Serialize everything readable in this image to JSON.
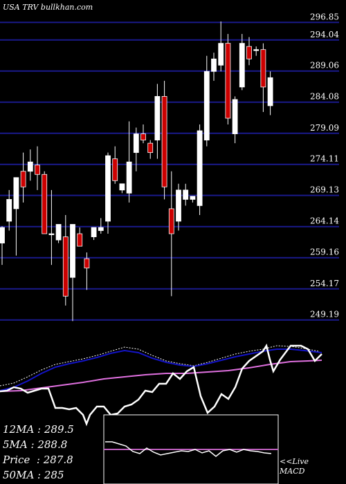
{
  "header": {
    "site": "USA TRV bullkhan.com"
  },
  "indicators": {
    "ma12": "12MA : 289.5",
    "ma5": "5MA : 288.8",
    "price": "Price  : 287.8",
    "ma50": "50MA : 285"
  },
  "macd": {
    "live": "<<Live",
    "label": "MACD"
  },
  "colors": {
    "background": "#000000",
    "gridline": "#1a1a8c",
    "candle_up": "#ffffff",
    "candle_down": "#cc0000",
    "ma_blue": "#1414c8",
    "ma_pink": "#e070e0",
    "oscillator": "#ffffff",
    "macd_signal": "#c060c0"
  },
  "chart_data": {
    "type": "candlestick",
    "ylim": [
      246.5,
      299.0
    ],
    "y_ticks": [
      "296.85",
      "294.04",
      "289.06",
      "284.08",
      "279.09",
      "274.11",
      "269.13",
      "264.14",
      "259.16",
      "254.17",
      "249.19"
    ],
    "candles": [
      {
        "o": 261.5,
        "h": 264.2,
        "l": 258.0,
        "c": 264.0
      },
      {
        "o": 265.0,
        "h": 270.0,
        "l": 263.5,
        "c": 268.5
      },
      {
        "o": 267.0,
        "h": 272.0,
        "l": 259.5,
        "c": 272.0
      },
      {
        "o": 273.0,
        "h": 276.0,
        "l": 268.0,
        "c": 270.5
      },
      {
        "o": 273.0,
        "h": 276.5,
        "l": 271.5,
        "c": 274.5
      },
      {
        "o": 274.0,
        "h": 277.0,
        "l": 270.0,
        "c": 272.5
      },
      {
        "o": 272.5,
        "h": 273.0,
        "l": 263.0,
        "c": 263.0
      },
      {
        "o": 263.0,
        "h": 270.0,
        "l": 258.0,
        "c": 263.0
      },
      {
        "o": 262.0,
        "h": 264.5,
        "l": 261.5,
        "c": 264.5
      },
      {
        "o": 262.5,
        "h": 266.0,
        "l": 251.5,
        "c": 253.0
      },
      {
        "o": 256.0,
        "h": 264.5,
        "l": 249.0,
        "c": 264.5
      },
      {
        "o": 263.0,
        "h": 264.0,
        "l": 261.0,
        "c": 261.0
      },
      {
        "o": 259.0,
        "h": 260.0,
        "l": 254.0,
        "c": 257.5
      },
      {
        "o": 262.5,
        "h": 264.0,
        "l": 262.0,
        "c": 264.0
      },
      {
        "o": 263.5,
        "h": 265.5,
        "l": 263.0,
        "c": 264.0
      },
      {
        "o": 265.0,
        "h": 276.0,
        "l": 263.0,
        "c": 275.5
      },
      {
        "o": 275.0,
        "h": 277.0,
        "l": 271.0,
        "c": 271.5
      },
      {
        "o": 270.0,
        "h": 271.0,
        "l": 269.5,
        "c": 271.0
      },
      {
        "o": 269.5,
        "h": 281.0,
        "l": 268.0,
        "c": 274.5
      },
      {
        "o": 276.0,
        "h": 280.0,
        "l": 273.0,
        "c": 279.0
      },
      {
        "o": 279.0,
        "h": 280.5,
        "l": 277.5,
        "c": 278.0
      },
      {
        "o": 277.5,
        "h": 278.0,
        "l": 275.0,
        "c": 276.0
      },
      {
        "o": 278.0,
        "h": 287.0,
        "l": 275.0,
        "c": 285.0
      },
      {
        "o": 285.0,
        "h": 287.5,
        "l": 268.5,
        "c": 270.5
      },
      {
        "o": 267.0,
        "h": 273.0,
        "l": 253.0,
        "c": 263.0
      },
      {
        "o": 265.0,
        "h": 271.0,
        "l": 263.5,
        "c": 270.0
      },
      {
        "o": 268.5,
        "h": 271.0,
        "l": 267.5,
        "c": 270.0
      },
      {
        "o": 268.5,
        "h": 269.0,
        "l": 268.0,
        "c": 269.0
      },
      {
        "o": 267.5,
        "h": 280.5,
        "l": 266.0,
        "c": 279.5
      },
      {
        "o": 278.0,
        "h": 291.5,
        "l": 277.0,
        "c": 289.0
      },
      {
        "o": 289.0,
        "h": 292.0,
        "l": 287.5,
        "c": 291.0
      },
      {
        "o": 290.0,
        "h": 297.0,
        "l": 289.0,
        "c": 293.5
      },
      {
        "o": 293.5,
        "h": 295.0,
        "l": 280.5,
        "c": 281.5
      },
      {
        "o": 279.0,
        "h": 285.0,
        "l": 277.5,
        "c": 284.5
      },
      {
        "o": 286.5,
        "h": 295.0,
        "l": 286.0,
        "c": 293.5
      },
      {
        "o": 293.0,
        "h": 294.5,
        "l": 290.0,
        "c": 291.0
      },
      {
        "o": 292.5,
        "h": 293.0,
        "l": 291.5,
        "c": 292.5
      },
      {
        "o": 292.5,
        "h": 293.5,
        "l": 282.5,
        "c": 286.5
      },
      {
        "o": 283.5,
        "h": 289.0,
        "l": 282.0,
        "c": 288.0
      }
    ]
  }
}
